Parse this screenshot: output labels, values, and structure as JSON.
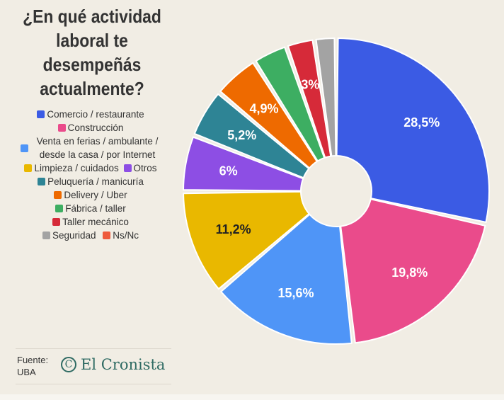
{
  "title": "¿En qué actividad laboral te desempeñás actualmente?",
  "source_label": "Fuente:",
  "source_value": "UBA",
  "logo_text": "El Cronista",
  "chart_data": {
    "type": "pie",
    "title": "¿En qué actividad laboral te desempeñás actualmente?",
    "donut": true,
    "legend_position": "left",
    "slices": [
      {
        "name": "Comercio / restaurante",
        "value": 28.5,
        "label": "28,5%",
        "color": "#3b5be4",
        "label_color": "#ffffff"
      },
      {
        "name": "Construcción",
        "value": 19.8,
        "label": "19,8%",
        "color": "#ea4b8b",
        "label_color": "#ffffff"
      },
      {
        "name": "Venta en ferias / ambulante / desde la casa / por Internet",
        "value": 15.6,
        "label": "15,6%",
        "color": "#4f95f7",
        "label_color": "#ffffff"
      },
      {
        "name": "Limpieza / cuidados",
        "value": 11.2,
        "label": "11,2%",
        "color": "#e9b800",
        "label_color": "#222222"
      },
      {
        "name": "Otros",
        "value": 6,
        "label": "6%",
        "color": "#8d4ee4",
        "label_color": "#ffffff"
      },
      {
        "name": "Peluquería / manicuría",
        "value": 5.2,
        "label": "5,2%",
        "color": "#2e8495",
        "label_color": "#ffffff"
      },
      {
        "name": "Delivery / Uber",
        "value": 4.9,
        "label": "4,9%",
        "color": "#ee6a00",
        "label_color": "#ffffff"
      },
      {
        "name": "Fábrica / taller",
        "value": 3.7,
        "label": "",
        "color": "#3dae62",
        "label_color": "#ffffff"
      },
      {
        "name": "Taller mecánico",
        "value": 3,
        "label": "3%",
        "color": "#d62a39",
        "label_color": "#ffffff"
      },
      {
        "name": "Seguridad",
        "value": 2.3,
        "label": "",
        "color": "#a3a3a3",
        "label_color": "#ffffff"
      },
      {
        "name": "Ns/Nc",
        "value": 0,
        "label": "",
        "color": "#ee5a3c",
        "label_color": "#ffffff"
      }
    ]
  }
}
